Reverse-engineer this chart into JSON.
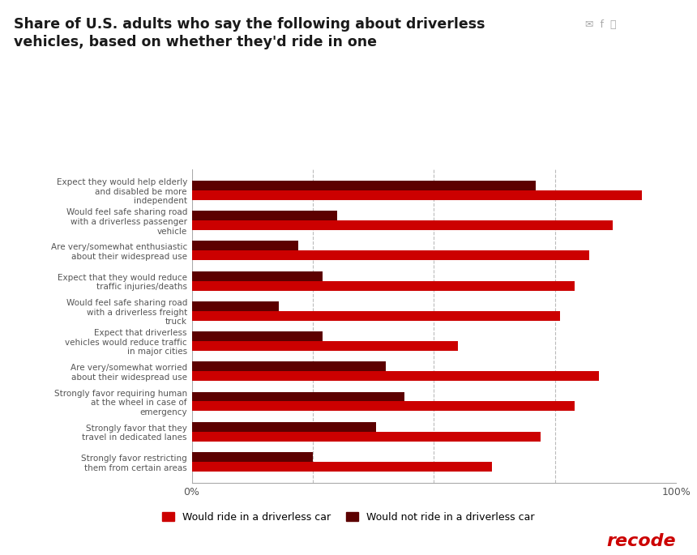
{
  "title": "Share of U.S. adults who say the following about driverless\nvehicles, based on whether they'd ride in one",
  "categories": [
    "Expect they would help elderly\nand disabled be more\nindependent",
    "Would feel safe sharing road\nwith a driverless passenger\nvehicle",
    "Are very/somewhat enthusiastic\nabout their widespread use",
    "Expect that they would reduce\ntraffic injuries/deaths",
    "Would feel safe sharing road\nwith a driverless freight\ntruck",
    "Expect that driverless\nvehicles would reduce traffic\nin major cities",
    "Are very/somewhat worried\nabout their widespread use",
    "Strongly favor requiring human\nat the wheel in case of\nemergency",
    "Strongly favor that they\ntravel in dedicated lanes",
    "Strongly favor restricting\nthem from certain areas"
  ],
  "ride_values": [
    93,
    87,
    82,
    79,
    76,
    55,
    84,
    79,
    72,
    62
  ],
  "no_ride_values": [
    71,
    30,
    22,
    27,
    18,
    27,
    40,
    44,
    38,
    25
  ],
  "ride_color": "#cc0000",
  "no_ride_color": "#5c0000",
  "legend_ride": "Would ride in a driverless car",
  "legend_no_ride": "Would not ride in a driverless car",
  "background_color": "#ffffff",
  "grid_color": "#bbbbbb",
  "title_color": "#1a1a1a",
  "label_color": "#555555",
  "recode_color": "#cc0000",
  "bar_height": 0.32,
  "figsize": [
    8.6,
    6.85
  ],
  "dpi": 100
}
